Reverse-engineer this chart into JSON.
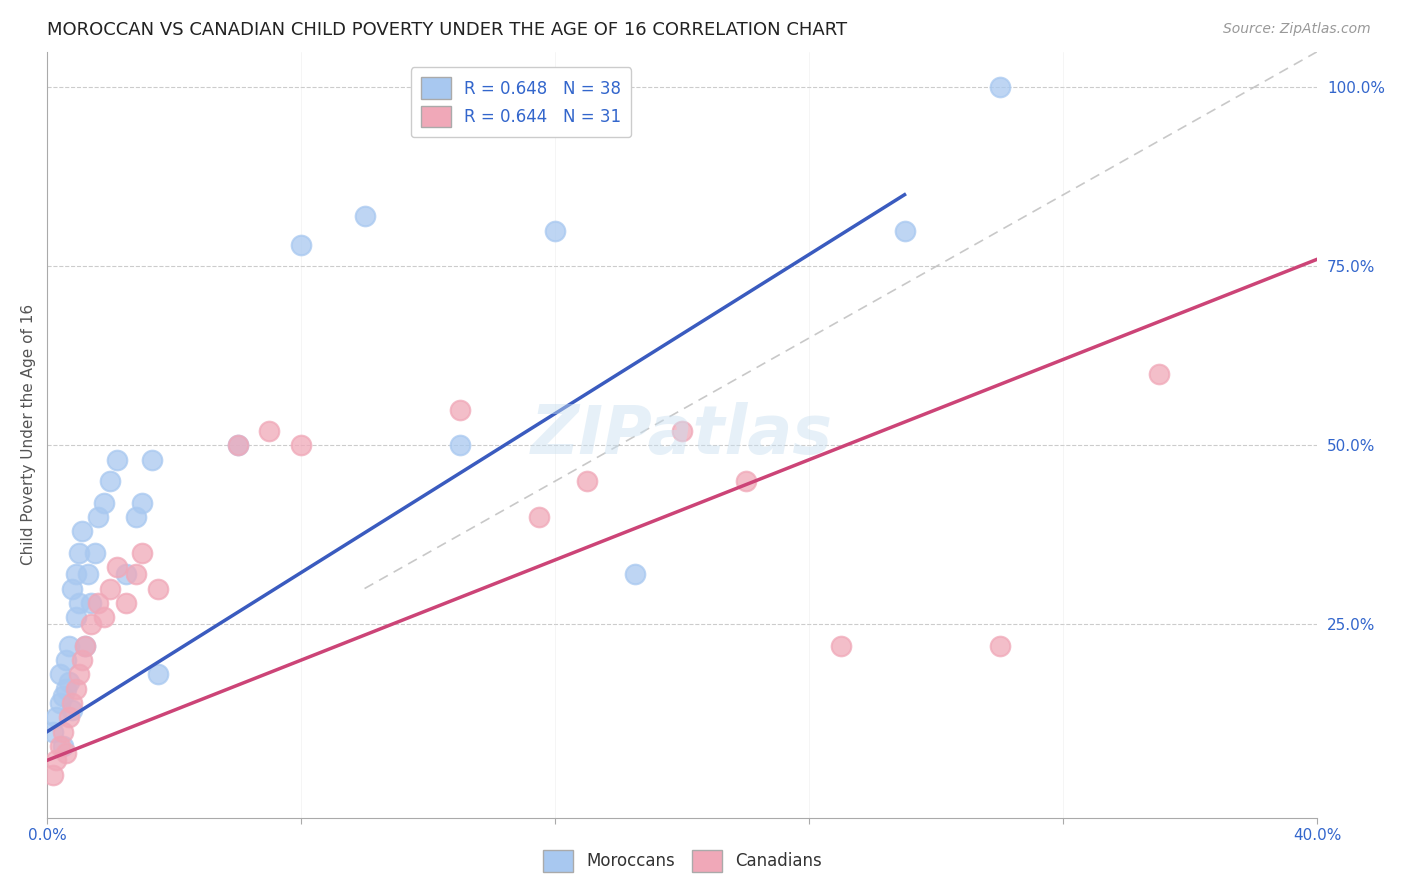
{
  "title": "MOROCCAN VS CANADIAN CHILD POVERTY UNDER THE AGE OF 16 CORRELATION CHART",
  "source": "Source: ZipAtlas.com",
  "ylabel": "Child Poverty Under the Age of 16",
  "xlim": [
    0.0,
    0.4
  ],
  "ylim": [
    -0.02,
    1.05
  ],
  "xticks": [
    0.0,
    0.08,
    0.16,
    0.24,
    0.32,
    0.4
  ],
  "xticklabels": [
    "0.0%",
    "",
    "",
    "",
    "",
    "40.0%"
  ],
  "yticks_right": [
    0.0,
    0.25,
    0.5,
    0.75,
    1.0
  ],
  "yticklabels_right": [
    "",
    "25.0%",
    "50.0%",
    "75.0%",
    "100.0%"
  ],
  "legend_moroccan_R": "R = 0.648",
  "legend_moroccan_N": "N = 38",
  "legend_canadian_R": "R = 0.644",
  "legend_canadian_N": "N = 31",
  "legend_label_moroccan": "Moroccans",
  "legend_label_canadian": "Canadians",
  "background_color": "#ffffff",
  "watermark": "ZIPatlas",
  "moroccan_color": "#a8c8f0",
  "canadian_color": "#f0a8b8",
  "moroccan_line_color": "#3a5bbf",
  "canadian_line_color": "#cc4477",
  "ref_line_color": "#bbbbbb",
  "moroccan_x": [
    0.002,
    0.003,
    0.004,
    0.004,
    0.005,
    0.005,
    0.006,
    0.006,
    0.007,
    0.007,
    0.008,
    0.008,
    0.009,
    0.009,
    0.01,
    0.01,
    0.011,
    0.012,
    0.013,
    0.014,
    0.015,
    0.016,
    0.018,
    0.02,
    0.022,
    0.025,
    0.028,
    0.03,
    0.033,
    0.035,
    0.06,
    0.08,
    0.1,
    0.13,
    0.16,
    0.185,
    0.27,
    0.3
  ],
  "moroccan_y": [
    0.1,
    0.12,
    0.14,
    0.18,
    0.08,
    0.15,
    0.16,
    0.2,
    0.22,
    0.17,
    0.3,
    0.13,
    0.26,
    0.32,
    0.28,
    0.35,
    0.38,
    0.22,
    0.32,
    0.28,
    0.35,
    0.4,
    0.42,
    0.45,
    0.48,
    0.32,
    0.4,
    0.42,
    0.48,
    0.18,
    0.5,
    0.78,
    0.82,
    0.5,
    0.8,
    0.32,
    0.8,
    1.0
  ],
  "canadian_x": [
    0.002,
    0.003,
    0.004,
    0.005,
    0.006,
    0.007,
    0.008,
    0.009,
    0.01,
    0.011,
    0.012,
    0.014,
    0.016,
    0.018,
    0.02,
    0.022,
    0.025,
    0.028,
    0.03,
    0.035,
    0.06,
    0.07,
    0.08,
    0.13,
    0.155,
    0.17,
    0.2,
    0.22,
    0.25,
    0.3,
    0.35
  ],
  "canadian_y": [
    0.04,
    0.06,
    0.08,
    0.1,
    0.07,
    0.12,
    0.14,
    0.16,
    0.18,
    0.2,
    0.22,
    0.25,
    0.28,
    0.26,
    0.3,
    0.33,
    0.28,
    0.32,
    0.35,
    0.3,
    0.5,
    0.52,
    0.5,
    0.55,
    0.4,
    0.45,
    0.52,
    0.45,
    0.22,
    0.22,
    0.6
  ],
  "moroccan_line_x0": 0.0,
  "moroccan_line_y0": 0.1,
  "moroccan_line_x1": 0.27,
  "moroccan_line_y1": 0.85,
  "canadian_line_x0": 0.0,
  "canadian_line_y0": 0.06,
  "canadian_line_x1": 0.4,
  "canadian_line_y1": 0.76,
  "title_fontsize": 13,
  "axis_label_fontsize": 11,
  "tick_fontsize": 11,
  "legend_fontsize": 12,
  "watermark_fontsize": 48,
  "watermark_color": "#c8dff0",
  "watermark_alpha": 0.45
}
